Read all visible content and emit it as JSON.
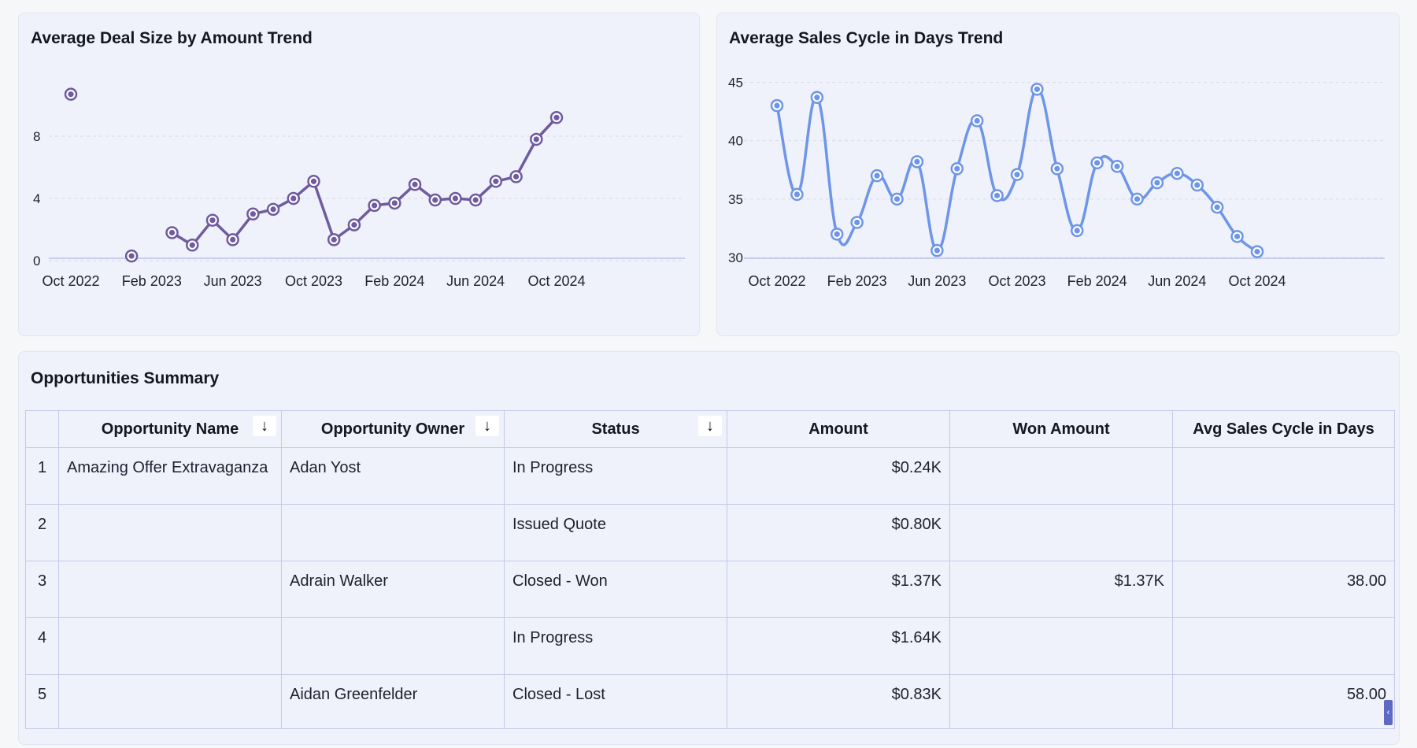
{
  "colors": {
    "deal_line": "#6f5b9e",
    "cycle_line": "#6e95e8",
    "grid": "#d7dbe6",
    "axis": "#c9cdee"
  },
  "chart_data": [
    {
      "type": "line",
      "title": "Average Deal Size by Amount Trend",
      "xlabel": "",
      "ylabel": "",
      "x_tick_labels": [
        "Oct 2022",
        "Feb 2023",
        "Jun 2023",
        "Oct 2023",
        "Feb 2024",
        "Jun 2024",
        "Oct 2024"
      ],
      "y_ticks": [
        0,
        4,
        8
      ],
      "ylim": [
        -0.2,
        12
      ],
      "grid": true,
      "legend": "none",
      "series": [
        {
          "name": "Average Deal Size",
          "points": [
            {
              "x": 0,
              "y": 10.7
            },
            {
              "x": 3,
              "y": 0.3
            },
            {
              "x": 5,
              "y": 1.8
            },
            {
              "x": 6,
              "y": 1.0
            },
            {
              "x": 7,
              "y": 2.6
            },
            {
              "x": 8,
              "y": 1.35
            },
            {
              "x": 9,
              "y": 3.0
            },
            {
              "x": 10,
              "y": 3.3
            },
            {
              "x": 11,
              "y": 4.0
            },
            {
              "x": 12,
              "y": 5.1
            },
            {
              "x": 13,
              "y": 1.35
            },
            {
              "x": 14,
              "y": 2.3
            },
            {
              "x": 15,
              "y": 3.55
            },
            {
              "x": 16,
              "y": 3.7
            },
            {
              "x": 17,
              "y": 4.9
            },
            {
              "x": 18,
              "y": 3.9
            },
            {
              "x": 19,
              "y": 4.0
            },
            {
              "x": 20,
              "y": 3.9
            },
            {
              "x": 21,
              "y": 5.1
            },
            {
              "x": 22,
              "y": 5.4
            },
            {
              "x": 23,
              "y": 7.8
            },
            {
              "x": 24,
              "y": 9.2
            }
          ],
          "segments": [
            [
              0,
              0
            ],
            [
              1,
              1
            ],
            [
              2,
              21
            ]
          ]
        }
      ]
    },
    {
      "type": "line",
      "title": "Average Sales Cycle in Days Trend",
      "xlabel": "",
      "ylabel": "",
      "x_tick_labels": [
        "Oct 2022",
        "Feb 2023",
        "Jun 2023",
        "Oct 2023",
        "Feb 2024",
        "Jun 2024",
        "Oct 2024"
      ],
      "y_ticks": [
        30,
        35,
        40,
        45
      ],
      "ylim": [
        29.8,
        45.3
      ],
      "grid": true,
      "legend": "none",
      "series": [
        {
          "name": "Average Sales Cycle",
          "points": [
            {
              "x": 0,
              "y": 43.0
            },
            {
              "x": 1,
              "y": 35.4
            },
            {
              "x": 2,
              "y": 43.7
            },
            {
              "x": 3,
              "y": 32.0
            },
            {
              "x": 4,
              "y": 33.0
            },
            {
              "x": 5,
              "y": 37.0
            },
            {
              "x": 6,
              "y": 35.0
            },
            {
              "x": 7,
              "y": 38.2
            },
            {
              "x": 8,
              "y": 30.6
            },
            {
              "x": 9,
              "y": 37.6
            },
            {
              "x": 10,
              "y": 41.7
            },
            {
              "x": 11,
              "y": 35.3
            },
            {
              "x": 12,
              "y": 37.1
            },
            {
              "x": 13,
              "y": 44.4
            },
            {
              "x": 14,
              "y": 37.6
            },
            {
              "x": 15,
              "y": 32.3
            },
            {
              "x": 16,
              "y": 38.1
            },
            {
              "x": 17,
              "y": 37.8
            },
            {
              "x": 18,
              "y": 35.0
            },
            {
              "x": 19,
              "y": 36.4
            },
            {
              "x": 20,
              "y": 37.2
            },
            {
              "x": 21,
              "y": 36.2
            },
            {
              "x": 22,
              "y": 34.3
            },
            {
              "x": 23,
              "y": 31.8
            },
            {
              "x": 24,
              "y": 30.5
            }
          ],
          "segments": [
            [
              0,
              24
            ]
          ]
        }
      ]
    }
  ],
  "summary": {
    "title": "Opportunities Summary",
    "headers": {
      "name": "Opportunity Name",
      "owner": "Opportunity Owner",
      "status": "Status",
      "amount": "Amount",
      "won": "Won Amount",
      "cycle": "Avg Sales Cycle in Days"
    },
    "sort_icon": "↓",
    "rows": [
      {
        "num": "1",
        "name": "Amazing Offer Extravaganza",
        "owner": "Adan Yost",
        "status": "In Progress",
        "amount": "$0.24K",
        "won": "",
        "cycle": ""
      },
      {
        "num": "2",
        "name": "",
        "owner": "",
        "status": "Issued Quote",
        "amount": "$0.80K",
        "won": "",
        "cycle": ""
      },
      {
        "num": "3",
        "name": "",
        "owner": "Adrain Walker",
        "status": "Closed - Won",
        "amount": "$1.37K",
        "won": "$1.37K",
        "cycle": "38.00"
      },
      {
        "num": "4",
        "name": "",
        "owner": "",
        "status": "In Progress",
        "amount": "$1.64K",
        "won": "",
        "cycle": ""
      },
      {
        "num": "5",
        "name": "",
        "owner": "Aidan Greenfelder",
        "status": "Closed - Lost",
        "amount": "$0.83K",
        "won": "",
        "cycle": "58.00"
      }
    ],
    "scroll_icon": "‹"
  }
}
